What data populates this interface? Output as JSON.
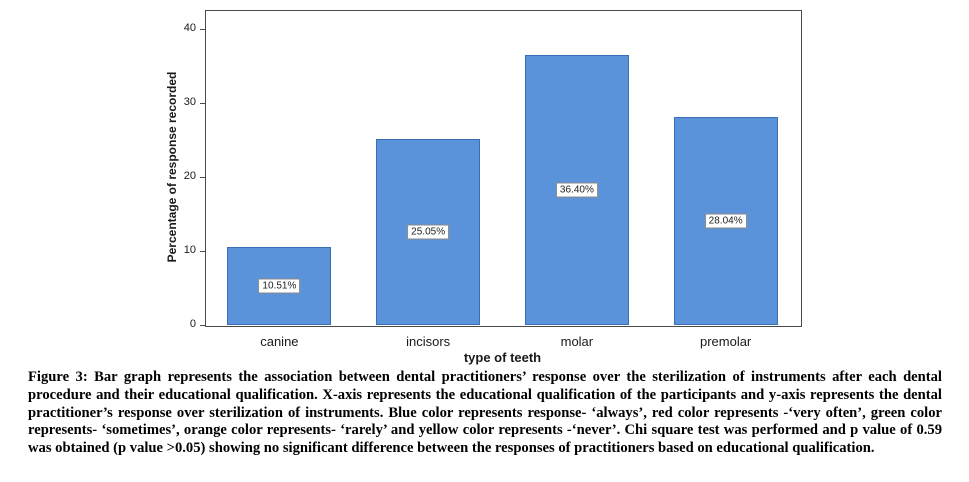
{
  "chart_data": {
    "type": "bar",
    "categories": [
      "canine",
      "incisors",
      "molar",
      "premolar"
    ],
    "values": [
      10.51,
      25.05,
      36.4,
      28.04
    ],
    "value_labels": [
      "10.51%",
      "25.05%",
      "36.40%",
      "28.04%"
    ],
    "title": "",
    "xlabel": "type of teeth",
    "ylabel": "Percentage of response recorded",
    "ylim": [
      0,
      42.5
    ],
    "yticks": [
      0,
      10,
      20,
      30,
      40
    ],
    "grid": false,
    "legend": "none",
    "bar_color": "#5b93db",
    "bar_border": "#3a6fb5"
  },
  "figure": {
    "caption_label": "Figure 3:",
    "caption_text": " Bar graph represents the association between dental practitioners’ response over the sterilization of instruments after each dental procedure and their educational qualification. X-axis represents the educational qualification of the participants and y-axis represents the dental practitioner’s response over sterilization of instruments. Blue color represents response- ‘always’, red color represents -‘very often’, green color represents- ‘sometimes’, orange color represents- ‘rarely’ and yellow color represents -‘never’. Chi square test was performed and p value of 0.59 was obtained (p value >0.05) showing no significant difference between the responses of practitioners based on educational qualification."
  }
}
